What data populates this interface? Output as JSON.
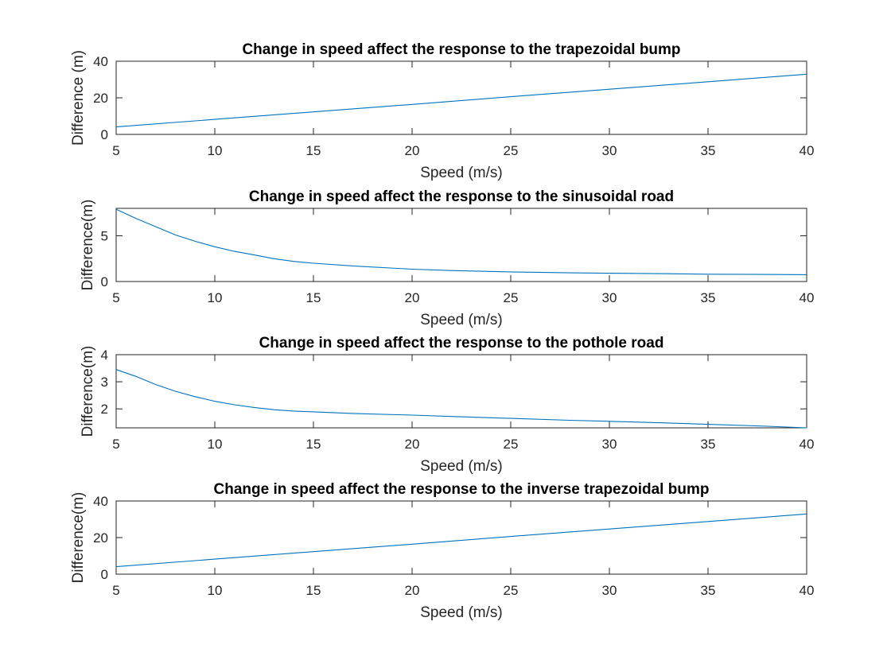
{
  "chart_data": [
    {
      "type": "line",
      "title": "Change in speed affect the response to the trapezoidal bump",
      "xlabel": "Speed (m/s)",
      "ylabel": "Difference (m)",
      "xlim": [
        5,
        40
      ],
      "ylim": [
        0,
        40
      ],
      "xticks": [
        5,
        10,
        15,
        20,
        25,
        30,
        35,
        40
      ],
      "yticks": [
        0,
        20,
        40
      ],
      "grid": false,
      "series": [
        {
          "color": "#0072BD",
          "x": [
            5,
            10,
            15,
            20,
            25,
            30,
            35,
            40
          ],
          "y": [
            4.1,
            8.2,
            12.3,
            16.4,
            20.6,
            24.7,
            28.8,
            32.9
          ]
        }
      ]
    },
    {
      "type": "line",
      "title": "Change in speed affect the response to the sinusoidal road",
      "xlabel": "Speed (m/s)",
      "ylabel": "Difference(m)",
      "xlim": [
        5,
        40
      ],
      "ylim": [
        0,
        8
      ],
      "xticks": [
        5,
        10,
        15,
        20,
        25,
        30,
        35,
        40
      ],
      "yticks": [
        0,
        5
      ],
      "grid": false,
      "series": [
        {
          "color": "#0072BD",
          "x": [
            5,
            6,
            7,
            8,
            9,
            10,
            11,
            12,
            13,
            14,
            15,
            17,
            20,
            22,
            25,
            28,
            30,
            33,
            35,
            38,
            40
          ],
          "y": [
            7.9,
            6.9,
            6.0,
            5.1,
            4.4,
            3.8,
            3.3,
            2.9,
            2.5,
            2.2,
            2.0,
            1.7,
            1.35,
            1.2,
            1.05,
            0.95,
            0.9,
            0.85,
            0.8,
            0.77,
            0.75
          ]
        }
      ]
    },
    {
      "type": "line",
      "title": "Change in speed affect the response to the pothole road",
      "xlabel": "Speed (m/s)",
      "ylabel": "Difference(m)",
      "xlim": [
        5,
        40
      ],
      "ylim": [
        1.3,
        4
      ],
      "xticks": [
        5,
        10,
        15,
        20,
        25,
        30,
        35,
        40
      ],
      "yticks": [
        2,
        3,
        4
      ],
      "grid": false,
      "series": [
        {
          "color": "#0072BD",
          "x": [
            5,
            6,
            7,
            8,
            9,
            10,
            11,
            12,
            13,
            14,
            15,
            17,
            20,
            22,
            25,
            28,
            30,
            33,
            35,
            38,
            40
          ],
          "y": [
            3.45,
            3.2,
            2.9,
            2.65,
            2.45,
            2.28,
            2.15,
            2.05,
            1.97,
            1.92,
            1.89,
            1.83,
            1.77,
            1.72,
            1.65,
            1.58,
            1.54,
            1.48,
            1.43,
            1.36,
            1.3
          ]
        }
      ]
    },
    {
      "type": "line",
      "title": "Change in speed affect the response to the inverse trapezoidal bump",
      "xlabel": "Speed (m/s)",
      "ylabel": "Difference(m)",
      "xlim": [
        5,
        40
      ],
      "ylim": [
        0,
        40
      ],
      "xticks": [
        5,
        10,
        15,
        20,
        25,
        30,
        35,
        40
      ],
      "yticks": [
        0,
        20,
        40
      ],
      "grid": false,
      "series": [
        {
          "color": "#0072BD",
          "x": [
            5,
            10,
            15,
            20,
            25,
            30,
            35,
            40
          ],
          "y": [
            4.1,
            8.2,
            12.3,
            16.4,
            20.6,
            24.7,
            28.8,
            32.9
          ]
        }
      ]
    }
  ]
}
